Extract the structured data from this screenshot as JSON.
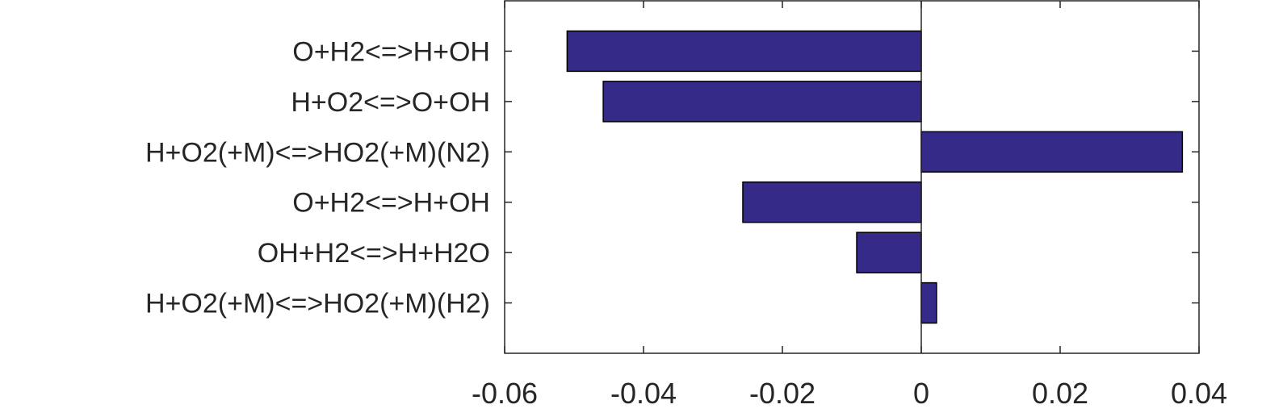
{
  "chart_data": {
    "type": "bar",
    "orientation": "horizontal",
    "title": "",
    "xlabel": "",
    "ylabel": "",
    "categories": [
      "O+H2<=>H+OH",
      "H+O2<=>O+OH",
      "H+O2(+M)<=>HO2(+M)(N2)",
      "O+H2<=>H+OH",
      "OH+H2<=>H+H2O",
      "H+O2(+M)<=>HO2(+M)(H2)"
    ],
    "values": [
      -0.051,
      -0.0458,
      0.0376,
      -0.0257,
      -0.0093,
      0.0022
    ],
    "xlim": [
      -0.06,
      0.04
    ],
    "xticks": [
      -0.06,
      -0.04,
      -0.02,
      0,
      0.02,
      0.04
    ],
    "xtick_labels": [
      "-0.06",
      "-0.04",
      "-0.02",
      "0",
      "0.02",
      "0.04"
    ],
    "grid": false,
    "bar_color": "#352a87",
    "edge_color": "#000000"
  }
}
